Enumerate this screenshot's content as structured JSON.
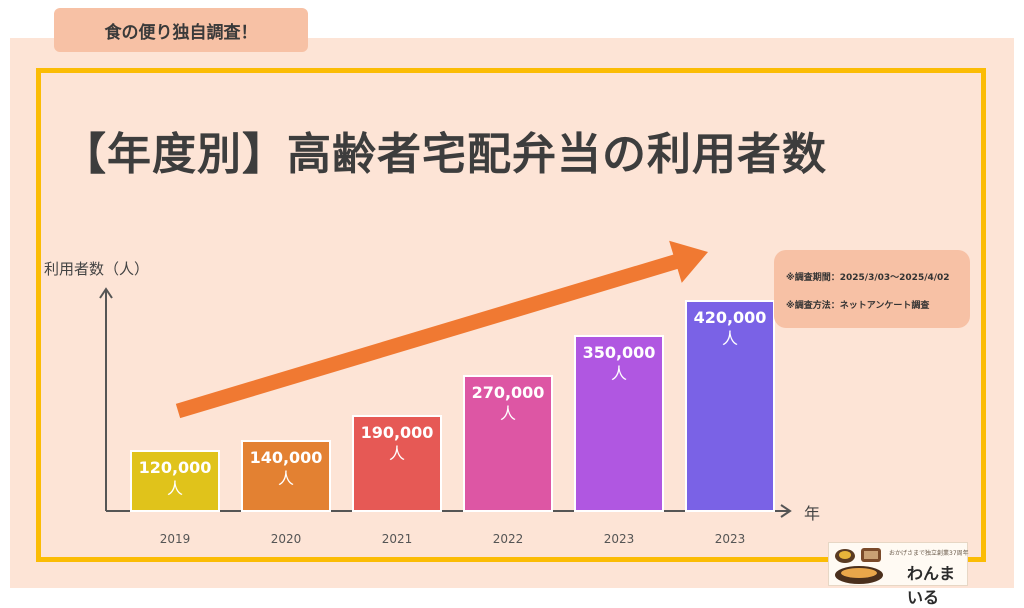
{
  "header": {
    "tag": "食の便り独自調査！"
  },
  "colors": {
    "background": "#fde4d6",
    "frame": "#fbbc05",
    "arrow": "#f07932",
    "bars": [
      "#e0c31b",
      "#e38132",
      "#e65955",
      "#dd56a4",
      "#b057e1",
      "#7a62e6"
    ]
  },
  "notes": {
    "period": "※調査期間：2025/3/03〜2025/4/02",
    "method": "※調査方法：ネットアンケート調査"
  },
  "logo": {
    "tagline": "おかげさまで独立創業37周年",
    "brand": "わんまいる",
    "icon": "food-dishes-icon"
  },
  "chart_data": {
    "type": "bar",
    "title": "【年度別】高齢者宅配弁当の利用者数",
    "ylabel": "利用者数（人）",
    "xlabel": "年",
    "categories": [
      "2019",
      "2020",
      "2021",
      "2022",
      "2023",
      "2023"
    ],
    "values": [
      120000,
      140000,
      190000,
      270000,
      350000,
      420000
    ],
    "value_labels": [
      "120,000",
      "140,000",
      "190,000",
      "270,000",
      "350,000",
      "420,000"
    ],
    "value_unit": "人",
    "ylim": [
      0,
      470000
    ],
    "grid": false,
    "trend_arrow": true
  }
}
